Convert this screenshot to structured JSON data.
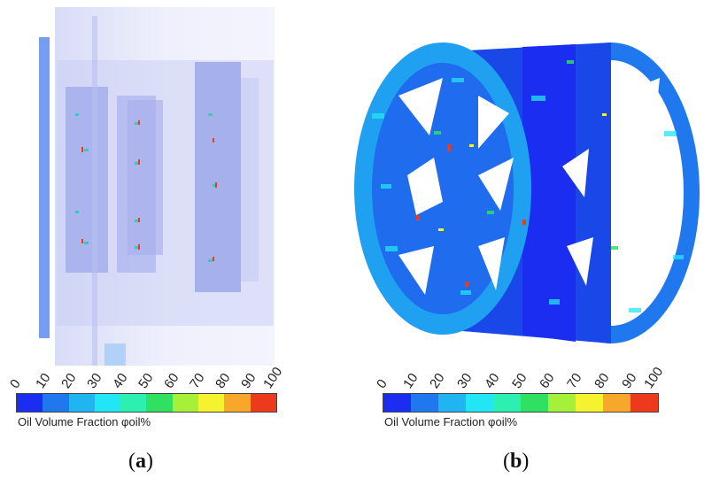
{
  "panels": [
    {
      "id": "a",
      "caption_open": "(",
      "caption_letter": "a",
      "caption_close": ")",
      "colorbar": {
        "label": "Oil Volume Fraction φoil%",
        "ticks": [
          "0",
          "10",
          "20",
          "30",
          "40",
          "50",
          "60",
          "70",
          "80",
          "90",
          "100"
        ]
      }
    },
    {
      "id": "b",
      "caption_open": "(",
      "caption_letter": "b",
      "caption_close": ")",
      "colorbar": {
        "label": "Oil Volume Fraction φoil%",
        "ticks": [
          "0",
          "10",
          "20",
          "30",
          "40",
          "50",
          "60",
          "70",
          "80",
          "90",
          "100"
        ]
      }
    }
  ],
  "colors": {
    "scale": [
      "#1a2df0",
      "#1f78ee",
      "#20b4f0",
      "#22e6f5",
      "#2bf0b0",
      "#30e060",
      "#a6f03a",
      "#f5f230",
      "#f7a82a",
      "#ee3a1c"
    ]
  }
}
